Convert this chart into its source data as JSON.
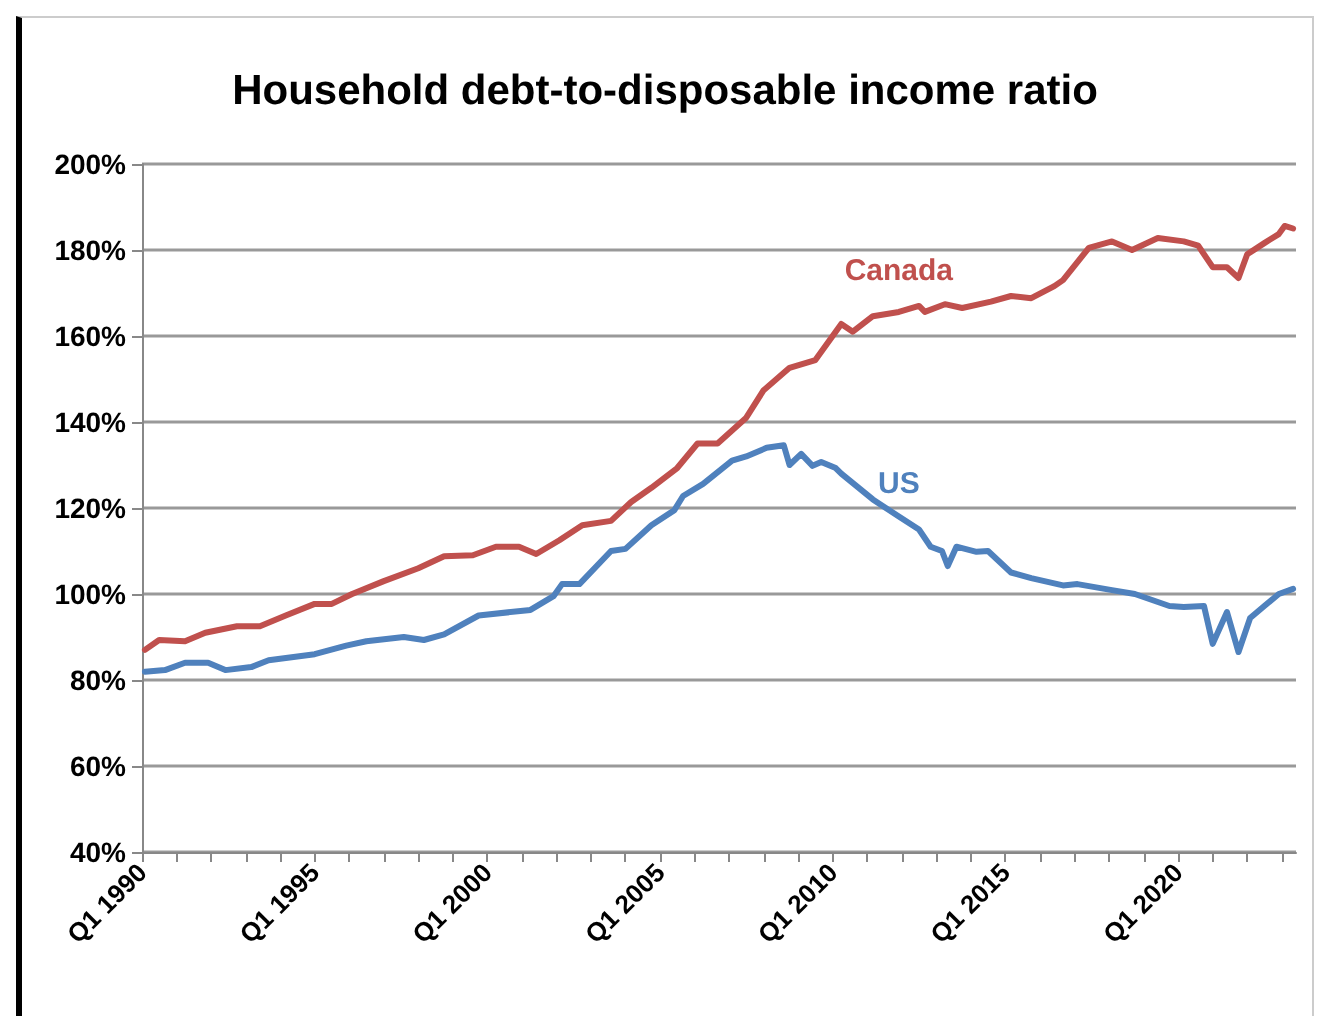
{
  "chart_data": {
    "type": "line",
    "title": "Household debt-to-disposable income ratio",
    "xlim": [
      "1990-01",
      "2023-06"
    ],
    "xticks": [
      {
        "value": "1990-01",
        "label": "Q1 1990"
      },
      {
        "value": "1991-01",
        "label": null
      },
      {
        "value": "1992-01",
        "label": null
      },
      {
        "value": "1993-01",
        "label": null
      },
      {
        "value": "1994-01",
        "label": null
      },
      {
        "value": "1995-01",
        "label": "Q1 1995"
      },
      {
        "value": "1996-01",
        "label": null
      },
      {
        "value": "1997-01",
        "label": null
      },
      {
        "value": "1998-01",
        "label": null
      },
      {
        "value": "1999-01",
        "label": null
      },
      {
        "value": "2000-01",
        "label": "Q1 2000"
      },
      {
        "value": "2001-01",
        "label": null
      },
      {
        "value": "2002-01",
        "label": null
      },
      {
        "value": "2003-01",
        "label": null
      },
      {
        "value": "2004-01",
        "label": null
      },
      {
        "value": "2005-01",
        "label": "Q1 2005"
      },
      {
        "value": "2006-01",
        "label": null
      },
      {
        "value": "2007-01",
        "label": null
      },
      {
        "value": "2008-01",
        "label": null
      },
      {
        "value": "2009-01",
        "label": null
      },
      {
        "value": "2010-01",
        "label": "Q1 2010"
      },
      {
        "value": "2011-01",
        "label": null
      },
      {
        "value": "2012-01",
        "label": null
      },
      {
        "value": "2013-01",
        "label": null
      },
      {
        "value": "2014-01",
        "label": null
      },
      {
        "value": "2015-01",
        "label": "Q1 2015"
      },
      {
        "value": "2016-01",
        "label": null
      },
      {
        "value": "2017-01",
        "label": null
      },
      {
        "value": "2018-01",
        "label": null
      },
      {
        "value": "2019-01",
        "label": null
      },
      {
        "value": "2020-01",
        "label": "Q1 2020"
      },
      {
        "value": "2021-01",
        "label": null
      },
      {
        "value": "2022-01",
        "label": null
      },
      {
        "value": "2023-01",
        "label": null
      }
    ],
    "ylim": [
      40,
      200
    ],
    "yticks": [
      {
        "value": 40,
        "label": "40%"
      },
      {
        "value": 60,
        "label": "60%"
      },
      {
        "value": 80,
        "label": "80%"
      },
      {
        "value": 100,
        "label": "100%"
      },
      {
        "value": 120,
        "label": "120%"
      },
      {
        "value": 140,
        "label": "140%"
      },
      {
        "value": 160,
        "label": "160%"
      },
      {
        "value": 180,
        "label": "180%"
      },
      {
        "value": 200,
        "label": "200%"
      }
    ],
    "grid": "y",
    "legend": false,
    "marker": "none",
    "line_style": "solid",
    "series": [
      {
        "name": "Canada",
        "color": "#c0504d",
        "x": [
          "1990-02",
          "1990-07",
          "1991-04",
          "1991-11",
          "1992-10",
          "1993-06",
          "1994-03",
          "1995-01",
          "1995-07",
          "1996-02",
          "1997-01",
          "1998-01",
          "1998-10",
          "1999-08",
          "2000-04",
          "2000-12",
          "2001-06",
          "2002-02",
          "2002-10",
          "2003-08",
          "2004-03",
          "2004-10",
          "2005-07",
          "2006-02",
          "2006-09",
          "2007-07",
          "2008-01",
          "2008-10",
          "2009-07",
          "2010-04",
          "2010-08",
          "2011-03",
          "2011-12",
          "2012-07",
          "2012-09",
          "2013-04",
          "2013-10",
          "2014-08",
          "2015-03",
          "2015-10",
          "2016-06",
          "2016-09",
          "2017-06",
          "2018-02",
          "2018-09",
          "2019-06",
          "2020-03",
          "2020-08",
          "2021-01",
          "2021-06",
          "2021-10",
          "2022-01",
          "2022-07",
          "2022-12",
          "2023-02",
          "2023-05"
        ],
        "values": [
          87,
          89.3,
          89,
          91,
          92.5,
          92.5,
          95,
          97.7,
          97.7,
          100,
          103,
          106,
          108.8,
          109,
          111,
          111,
          109.3,
          112.5,
          116,
          117,
          121.4,
          124.7,
          129.3,
          135,
          135,
          141,
          147.4,
          152.6,
          154.4,
          162.8,
          161,
          164.6,
          165.6,
          167,
          165.6,
          167.4,
          166.5,
          168,
          169.3,
          168.8,
          171.6,
          173,
          180.5,
          182,
          180,
          182.8,
          182,
          181,
          176,
          176,
          173.5,
          179,
          181.6,
          183.7,
          185.6,
          185
        ]
      },
      {
        "name": "US",
        "color": "#4f81bd",
        "x": [
          "1990-02",
          "1990-09",
          "1991-04",
          "1991-12",
          "1992-06",
          "1993-03",
          "1993-09",
          "1995-01",
          "1995-12",
          "1996-07",
          "1997-08",
          "1998-03",
          "1998-10",
          "1999-10",
          "2001-04",
          "2001-12",
          "2002-03",
          "2002-09",
          "2003-08",
          "2004-01",
          "2004-10",
          "2005-06",
          "2005-09",
          "2006-04",
          "2007-02",
          "2007-07",
          "2008-02",
          "2008-08",
          "2008-10",
          "2009-02",
          "2009-06",
          "2009-09",
          "2010-02",
          "2010-04",
          "2011-03",
          "2011-12",
          "2012-07",
          "2012-11",
          "2013-03",
          "2013-05",
          "2013-08",
          "2014-03",
          "2014-07",
          "2015-03",
          "2015-10",
          "2016-09",
          "2017-02",
          "2018-02",
          "2018-10",
          "2019-10",
          "2020-03",
          "2020-10",
          "2021-01",
          "2021-06",
          "2021-10",
          "2022-02",
          "2022-07",
          "2022-12",
          "2023-05"
        ],
        "values": [
          81.9,
          82.3,
          84,
          84,
          82.3,
          83,
          84.6,
          86,
          88,
          89,
          90,
          89.3,
          90.6,
          95,
          96.3,
          99.5,
          102.3,
          102.3,
          110,
          110.5,
          116,
          119.5,
          122.8,
          125.6,
          131,
          132,
          134,
          134.6,
          130,
          132.6,
          129.8,
          130.7,
          129.3,
          128,
          122,
          118,
          115,
          111,
          110,
          106.5,
          111,
          109.8,
          110,
          105,
          103.7,
          102,
          102.3,
          100.9,
          100,
          97.2,
          97,
          97.2,
          88.4,
          95.8,
          86.5,
          94.4,
          97.2,
          100,
          101.2
        ]
      }
    ]
  }
}
